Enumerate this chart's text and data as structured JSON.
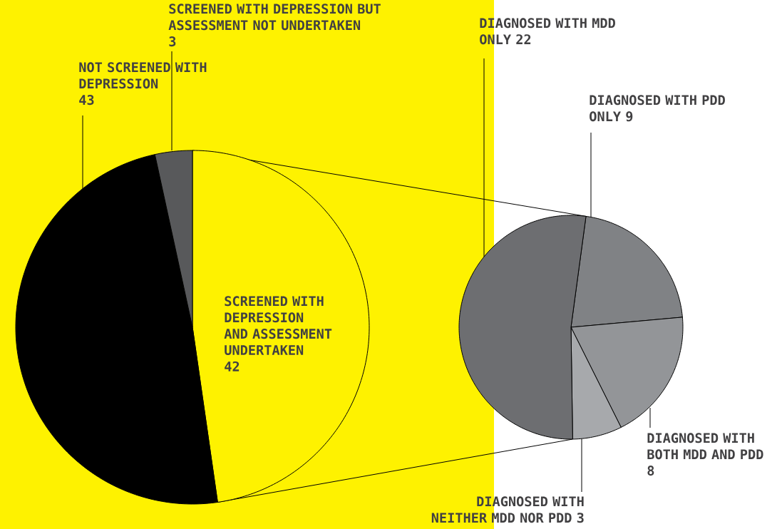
{
  "chart_data": [
    {
      "type": "pie",
      "categories": [
        "SCREENED WITH DEPRESSION AND ASSESSMENT UNDERTAKEN",
        "NOT SCREENED WITH DEPRESSION",
        "SCREENED WITH DEPRESSION BUT ASSESSMENT NOT UNDERTAKEN"
      ],
      "values": [
        42,
        43,
        3
      ],
      "colors": [
        "#fef200",
        "#000000",
        "#58595b"
      ],
      "data_labels": true
    },
    {
      "type": "pie",
      "categories": [
        "DIAGNOSED WITH PDD ONLY",
        "DIAGNOSED WITH BOTH MDD AND PDD",
        "DIAGNOSED WITH NEITHER MDD NOR PDD",
        "DIAGNOSED WITH MDD ONLY"
      ],
      "values": [
        9,
        8,
        3,
        22
      ],
      "colors": [
        "#808285",
        "#939598",
        "#a7a9ac",
        "#6d6e71"
      ],
      "data_labels": true
    }
  ]
}
